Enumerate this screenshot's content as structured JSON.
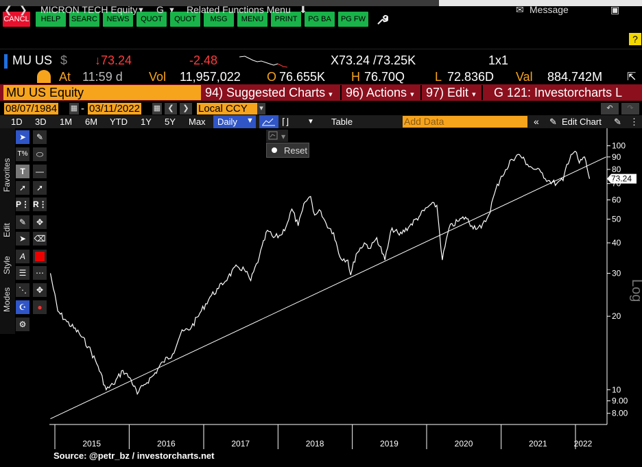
{
  "function_keys": [
    "CANCL",
    "HELP",
    "SEARC",
    "NEWS",
    "QUOT",
    "QUOT",
    "MSG",
    "MENU",
    "PRINT",
    "PG BA",
    "PG FW"
  ],
  "nav": {
    "security": "MICRON TECH Equity",
    "mode": "G",
    "related": "Related Functions Menu",
    "message": "Message"
  },
  "quote": {
    "ticker": "MU US",
    "currency": "$",
    "last": "↓73.24",
    "change": "-2.48",
    "bid_ask": "X73.24 /73.25K",
    "size": "1x1",
    "at_label": "At",
    "time": "11:59 d",
    "vol_label": "Vol",
    "volume": "11,957,022",
    "open_label": "O",
    "open": "76.655K",
    "high_label": "H",
    "high": "76.70Q",
    "low_label": "L",
    "low": "72.836D",
    "val_label": "Val",
    "value": "884.742M"
  },
  "titlebar": {
    "security": "MU US Equity",
    "suggested": "94) Suggested Charts",
    "actions": "96) Actions",
    "edit": "97) Edit",
    "chart_name": "G 121: Investorcharts L"
  },
  "dates": {
    "start": "08/07/1984",
    "end": "03/11/2022",
    "currency": "Local CCY"
  },
  "ranges": [
    "1D",
    "3D",
    "1M",
    "6M",
    "YTD",
    "1Y",
    "5Y",
    "Max"
  ],
  "frequency": "Daily",
  "table_label": "Table",
  "add_data_placeholder": "Add Data",
  "edit_chart": "Edit Chart",
  "reset_label": "Reset",
  "side_labels": [
    "Favorites",
    "Edit",
    "Style",
    "Modes"
  ],
  "colors": {
    "amber": "#f7a41d",
    "red_bar": "#8b0f1d",
    "green_key": "#19b34a",
    "red_key": "#e8112d"
  },
  "chart_data": {
    "type": "line",
    "scale": "log",
    "ylabel": "Log",
    "last_label": "73.24",
    "y_ticks": [
      "100",
      "90",
      "80",
      "70",
      "60",
      "50",
      "40",
      "30",
      "20",
      "10",
      "9.00",
      "8.00"
    ],
    "x_ticks": [
      "2015",
      "2016",
      "2017",
      "2018",
      "2019",
      "2020",
      "2021",
      "2022"
    ],
    "source": "Source: @petr_bz / investorcharts.net",
    "series": [
      {
        "values": [
          [
            "2014-12-10",
            30
          ],
          [
            "2015-01-15",
            21
          ],
          [
            "2015-03-01",
            19
          ],
          [
            "2015-05-01",
            17
          ],
          [
            "2015-06-15",
            15
          ],
          [
            "2015-08-01",
            12.5
          ],
          [
            "2015-09-10",
            10
          ],
          [
            "2015-10-15",
            10.5
          ],
          [
            "2015-12-01",
            12
          ],
          [
            "2016-01-10",
            11
          ],
          [
            "2016-02-10",
            9.6
          ],
          [
            "2016-03-15",
            10.5
          ],
          [
            "2016-05-01",
            11.5
          ],
          [
            "2016-06-15",
            13
          ],
          [
            "2016-08-01",
            14
          ],
          [
            "2016-09-10",
            17
          ],
          [
            "2016-11-01",
            18
          ],
          [
            "2016-12-20",
            21
          ],
          [
            "2017-02-01",
            24
          ],
          [
            "2017-03-15",
            26
          ],
          [
            "2017-05-01",
            29
          ],
          [
            "2017-06-15",
            32
          ],
          [
            "2017-07-20",
            31
          ],
          [
            "2017-08-20",
            28
          ],
          [
            "2017-10-01",
            35
          ],
          [
            "2017-11-10",
            45
          ],
          [
            "2017-12-10",
            42
          ],
          [
            "2018-01-15",
            43
          ],
          [
            "2018-02-15",
            48
          ],
          [
            "2018-03-10",
            55
          ],
          [
            "2018-04-10",
            47
          ],
          [
            "2018-05-15",
            59
          ],
          [
            "2018-06-10",
            62
          ],
          [
            "2018-06-30",
            52
          ],
          [
            "2018-07-30",
            54
          ],
          [
            "2018-08-25",
            48
          ],
          [
            "2018-10-01",
            44
          ],
          [
            "2018-11-01",
            35
          ],
          [
            "2018-12-10",
            34
          ],
          [
            "2018-12-24",
            29.5
          ],
          [
            "2019-01-20",
            36
          ],
          [
            "2019-03-01",
            40
          ],
          [
            "2019-04-01",
            38
          ],
          [
            "2019-05-01",
            42
          ],
          [
            "2019-06-10",
            34
          ],
          [
            "2019-07-15",
            46
          ],
          [
            "2019-08-20",
            43
          ],
          [
            "2019-10-10",
            47
          ],
          [
            "2019-12-01",
            52
          ],
          [
            "2020-01-15",
            57
          ],
          [
            "2020-02-20",
            57
          ],
          [
            "2020-03-18",
            34
          ],
          [
            "2020-04-20",
            46
          ],
          [
            "2020-06-01",
            49
          ],
          [
            "2020-07-10",
            51
          ],
          [
            "2020-08-10",
            47
          ],
          [
            "2020-09-25",
            46
          ],
          [
            "2020-11-01",
            52
          ],
          [
            "2020-11-30",
            64
          ],
          [
            "2021-01-01",
            75
          ],
          [
            "2021-01-30",
            80
          ],
          [
            "2021-02-20",
            88
          ],
          [
            "2021-04-01",
            92
          ],
          [
            "2021-05-10",
            84
          ],
          [
            "2021-06-15",
            80
          ],
          [
            "2021-07-15",
            78
          ],
          [
            "2021-08-20",
            72
          ],
          [
            "2021-10-01",
            70
          ],
          [
            "2021-11-01",
            72
          ],
          [
            "2021-11-20",
            84
          ],
          [
            "2021-12-10",
            92
          ],
          [
            "2021-12-30",
            95
          ],
          [
            "2022-01-20",
            85
          ],
          [
            "2022-02-15",
            90
          ],
          [
            "2022-03-11",
            73.24
          ]
        ]
      }
    ],
    "trendline": [
      [
        "2014-12-10",
        7.6
      ],
      [
        "2022-06-01",
        90
      ]
    ]
  }
}
